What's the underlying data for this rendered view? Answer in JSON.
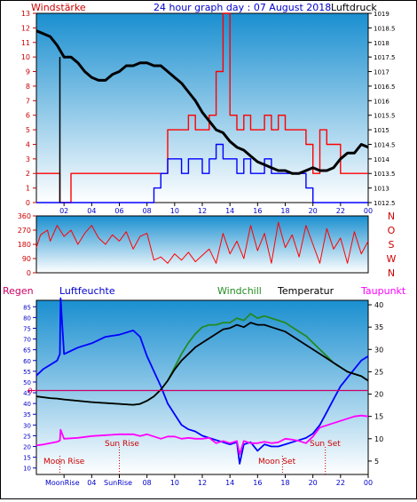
{
  "header": {
    "left_label": "Windstärke",
    "title": "24 hour graph day : 07 August 2018",
    "right_label": "Luftdruck"
  },
  "labels": {
    "regen": "Regen",
    "luftfeuchte": "Luftfeuchte",
    "windchill": "Windchill",
    "temperatur": "Temperatur",
    "taupunkt": "Taupunkt",
    "sun_rise": "Sun Rise",
    "sun_set": "Sun Set",
    "moon_rise": "Moon Rise",
    "moon_set": "Moon Set",
    "x_moonrise": "MoonRise",
    "x_sunrise": "SunRise"
  },
  "colors": {
    "bg_top": "#1a8fd0",
    "bg_bottom": "#ffffff",
    "wind_gust": "#ff0000",
    "wind_avg": "#0000ff",
    "pressure": "#000000",
    "direction": "#ff0000",
    "humidity": "#0000ff",
    "temperature": "#000000",
    "windchill": "#228b22",
    "dewpoint": "#ff00ff",
    "rain_zero": "#cc0066",
    "axis_red": "#cc0000",
    "axis_blue": "#0000cc",
    "axis_dark": "#000000"
  },
  "chart_data": [
    {
      "type": "line",
      "id": "wind_pressure",
      "title": "24 hour graph day : 07 August 2018",
      "x_ticks": [
        "02",
        "04",
        "06",
        "08",
        "10",
        "12",
        "14",
        "16",
        "18",
        "20",
        "22",
        "00"
      ],
      "y_left_label": "Windstärke",
      "y_left_ticks": [
        0,
        1,
        2,
        3,
        4,
        5,
        6,
        7,
        8,
        9,
        10,
        11,
        12,
        13
      ],
      "y_right_label": "Luftdruck",
      "y_right_ticks": [
        1012.5,
        1013,
        1013.5,
        1014,
        1014.5,
        1015,
        1015.5,
        1016,
        1016.5,
        1017,
        1017.5,
        1018,
        1018.5,
        1019
      ],
      "series": [
        {
          "name": "Luftdruck",
          "axis": "right",
          "x": [
            0,
            0.5,
            1,
            1.5,
            2,
            2.5,
            3,
            3.5,
            4,
            4.5,
            5,
            5.5,
            6,
            6.5,
            7,
            7.5,
            8,
            8.5,
            9,
            9.5,
            10,
            10.5,
            11,
            11.5,
            12,
            12.5,
            13,
            13.5,
            14,
            14.5,
            15,
            15.5,
            16,
            16.5,
            17,
            17.5,
            18,
            18.5,
            19,
            19.5,
            20,
            20.5,
            21,
            21.5,
            22,
            22.5,
            23,
            23.5,
            24
          ],
          "y": [
            1018.4,
            1018.3,
            1018.2,
            1017.9,
            1017.5,
            1017.5,
            1017.3,
            1017.0,
            1016.8,
            1016.7,
            1016.7,
            1016.9,
            1017.0,
            1017.2,
            1017.2,
            1017.3,
            1017.3,
            1017.2,
            1017.2,
            1017.0,
            1016.8,
            1016.6,
            1016.3,
            1016.0,
            1015.6,
            1015.3,
            1015.0,
            1014.9,
            1014.6,
            1014.4,
            1014.3,
            1014.1,
            1013.9,
            1013.8,
            1013.7,
            1013.6,
            1013.6,
            1013.5,
            1013.5,
            1013.6,
            1013.7,
            1013.6,
            1013.6,
            1013.7,
            1014.0,
            1014.2,
            1014.2,
            1014.5,
            1014.4
          ]
        },
        {
          "name": "Windstärke Böen",
          "axis": "left",
          "x": [
            0,
            1,
            1.6,
            1.7,
            2.5,
            3,
            4,
            5,
            6,
            7,
            8,
            8.5,
            9,
            9.5,
            10,
            10.5,
            11,
            11.5,
            12,
            12.5,
            13,
            13.5,
            14,
            14.5,
            15,
            15.5,
            16,
            16.5,
            17,
            17.5,
            18,
            18.5,
            19,
            19.5,
            20,
            20.5,
            21,
            22,
            23,
            23.8,
            24
          ],
          "y": [
            2,
            2,
            2,
            0,
            2,
            2,
            2,
            2,
            2,
            2,
            2,
            2,
            2,
            5,
            5,
            5,
            6,
            5,
            5,
            6,
            9,
            13,
            6,
            5,
            6,
            5,
            5,
            6,
            5,
            6,
            5,
            5,
            5,
            4,
            2,
            5,
            4,
            2,
            2,
            2,
            2
          ]
        },
        {
          "name": "Windstärke Mittel",
          "axis": "left",
          "x": [
            0,
            2,
            4,
            6,
            8,
            8.5,
            9,
            9.5,
            10,
            10.5,
            11,
            11.5,
            12,
            12.5,
            13,
            13.5,
            14,
            14.5,
            15,
            15.5,
            16,
            16.5,
            17,
            17.5,
            18,
            18.5,
            19,
            19.5,
            20,
            21,
            22,
            23,
            24
          ],
          "y": [
            0,
            0,
            0,
            0,
            0,
            1,
            2,
            3,
            3,
            2,
            3,
            3,
            2,
            3,
            4,
            3,
            3,
            2,
            3,
            2,
            2,
            3,
            2,
            2,
            2,
            2,
            2,
            1,
            0,
            0,
            0,
            0,
            0
          ]
        }
      ]
    },
    {
      "type": "line",
      "id": "wind_direction",
      "y_ticks": [
        0,
        90,
        180,
        270,
        360
      ],
      "y_right_labels": [
        "N",
        "W",
        "S",
        "O",
        "N"
      ],
      "series": [
        {
          "name": "Windrichtung",
          "x": [
            0,
            0.3,
            0.8,
            1,
            1.5,
            2,
            2.5,
            3,
            3.5,
            4,
            4.5,
            5,
            5.5,
            6,
            6.5,
            7,
            7.5,
            8,
            8.5,
            9,
            9.5,
            10,
            10.5,
            11,
            11.5,
            12,
            12.5,
            13,
            13.5,
            14,
            14.5,
            15,
            15.5,
            16,
            16.5,
            17,
            17.5,
            18,
            18.5,
            19,
            19.5,
            20,
            20.5,
            21,
            21.5,
            22,
            22.5,
            23,
            23.5,
            24
          ],
          "y": [
            160,
            240,
            270,
            200,
            300,
            230,
            270,
            180,
            250,
            300,
            220,
            180,
            240,
            200,
            260,
            150,
            230,
            250,
            80,
            100,
            60,
            120,
            80,
            130,
            70,
            110,
            150,
            60,
            250,
            120,
            200,
            90,
            300,
            140,
            250,
            60,
            320,
            160,
            240,
            100,
            300,
            180,
            60,
            280,
            150,
            220,
            60,
            260,
            120,
            200
          ]
        }
      ]
    },
    {
      "type": "line",
      "id": "temp_humidity",
      "y_left_label": "Luftfeuchte",
      "y_left_ticks": [
        10,
        15,
        20,
        25,
        30,
        35,
        40,
        45,
        50,
        55,
        60,
        65,
        70,
        75,
        80,
        85
      ],
      "y_right_label": "Temperatur",
      "y_right_ticks": [
        5,
        10,
        15,
        20,
        25,
        30,
        35,
        40
      ],
      "rain_zero_label": "0",
      "x_ticks": [
        "02",
        "04",
        "06",
        "08",
        "10",
        "12",
        "14",
        "16",
        "18",
        "20",
        "22",
        "00"
      ],
      "series": [
        {
          "name": "Luftfeuchte",
          "axis": "left",
          "x": [
            0,
            0.5,
            1,
            1.5,
            1.7,
            1.75,
            2,
            3,
            4,
            5,
            6,
            7,
            7.5,
            8,
            8.5,
            9,
            9.5,
            10,
            10.5,
            11,
            11.5,
            12,
            12.5,
            13,
            13.5,
            14,
            14.5,
            14.7,
            15,
            15.5,
            16,
            16.5,
            17,
            17.5,
            18,
            18.5,
            19,
            19.5,
            20,
            20.5,
            21,
            21.5,
            22,
            22.5,
            23,
            23.5,
            24
          ],
          "y": [
            53,
            56,
            58,
            60,
            63,
            89,
            63,
            66,
            68,
            71,
            72,
            74,
            71,
            62,
            55,
            48,
            40,
            35,
            30,
            28,
            27,
            25,
            24,
            23,
            22,
            21,
            22,
            12,
            21,
            22,
            18,
            21,
            20,
            20,
            21,
            22,
            23,
            24,
            26,
            30,
            36,
            42,
            48,
            52,
            56,
            60,
            62
          ]
        },
        {
          "name": "Temperatur",
          "axis": "right",
          "x": [
            0,
            0.5,
            1,
            1.5,
            2,
            3,
            4,
            5,
            6,
            7,
            7.5,
            8,
            8.5,
            9,
            9.5,
            10,
            10.5,
            11,
            11.5,
            12,
            12.5,
            13,
            13.5,
            14,
            14.5,
            15,
            15.5,
            16,
            16.5,
            17,
            17.5,
            18,
            18.5,
            19,
            19.5,
            20,
            20.5,
            21,
            21.5,
            22,
            22.5,
            23,
            23.5,
            24
          ],
          "y": [
            19.5,
            19.3,
            19.1,
            19.0,
            18.8,
            18.5,
            18.2,
            18.0,
            17.8,
            17.6,
            17.8,
            18.5,
            19.5,
            21.0,
            23.0,
            25.5,
            27.5,
            29.0,
            30.5,
            31.5,
            32.5,
            33.5,
            34.5,
            34.8,
            35.5,
            35.0,
            36.0,
            35.5,
            35.5,
            35.0,
            34.5,
            34.0,
            33.0,
            32.0,
            31.0,
            30.0,
            29.0,
            28.0,
            27.0,
            26.0,
            25.0,
            24.5,
            24.0,
            23.0
          ]
        },
        {
          "name": "Windchill",
          "axis": "right",
          "x": [
            0,
            0.5,
            1,
            1.5,
            2,
            3,
            4,
            5,
            6,
            7,
            7.5,
            8,
            8.5,
            9,
            9.5,
            10,
            10.5,
            11,
            11.5,
            12,
            12.5,
            13,
            13.5,
            14,
            14.5,
            15,
            15.5,
            16,
            16.5,
            17,
            17.5,
            18,
            18.5,
            19,
            19.5,
            20,
            20.5,
            21,
            21.5,
            22,
            22.5,
            23,
            23.5,
            24
          ],
          "y": [
            19.5,
            19.3,
            19.1,
            19.0,
            18.8,
            18.5,
            18.2,
            18.0,
            17.8,
            17.6,
            17.8,
            18.5,
            19.5,
            21.0,
            23.0,
            26.0,
            29.0,
            31.5,
            33.5,
            35.0,
            35.5,
            35.5,
            36.0,
            36.0,
            37.0,
            36.5,
            38.0,
            37.0,
            37.5,
            37.0,
            36.5,
            36.0,
            35.0,
            34.0,
            33.0,
            31.5,
            30.0,
            28.5,
            27.0,
            26.0,
            25.0,
            24.5,
            24.0,
            23.0
          ]
        },
        {
          "name": "Taupunkt",
          "axis": "right",
          "x": [
            0,
            0.5,
            1,
            1.5,
            1.7,
            1.75,
            2,
            3,
            4,
            5,
            6,
            7,
            7.5,
            8,
            8.5,
            9,
            9.5,
            10,
            10.5,
            11,
            11.5,
            12,
            12.5,
            13,
            13.5,
            14,
            14.5,
            14.7,
            15,
            15.5,
            16,
            16.5,
            17,
            17.5,
            18,
            18.5,
            19,
            19.5,
            20,
            20.5,
            21,
            21.5,
            22,
            22.5,
            23,
            23.5,
            24
          ],
          "y": [
            8.5,
            8.7,
            9.0,
            9.3,
            9.6,
            12.0,
            10.0,
            10.2,
            10.6,
            10.8,
            11.0,
            11.0,
            10.6,
            11.0,
            10.5,
            10.0,
            10.5,
            10.5,
            10.0,
            10.2,
            10.0,
            10.0,
            10.2,
            9.0,
            9.5,
            9.0,
            9.5,
            6.5,
            9.5,
            9.0,
            9.0,
            9.3,
            9.0,
            9.2,
            10.0,
            9.8,
            9.5,
            9.0,
            10.5,
            12.5,
            13.0,
            13.5,
            14.0,
            14.5,
            15.0,
            15.2,
            15.0
          ]
        }
      ],
      "sun_rise_hour": 6.0,
      "sun_set_hour": 20.9,
      "moon_rise_hour": 1.7,
      "moon_set_hour": 17.8
    }
  ]
}
